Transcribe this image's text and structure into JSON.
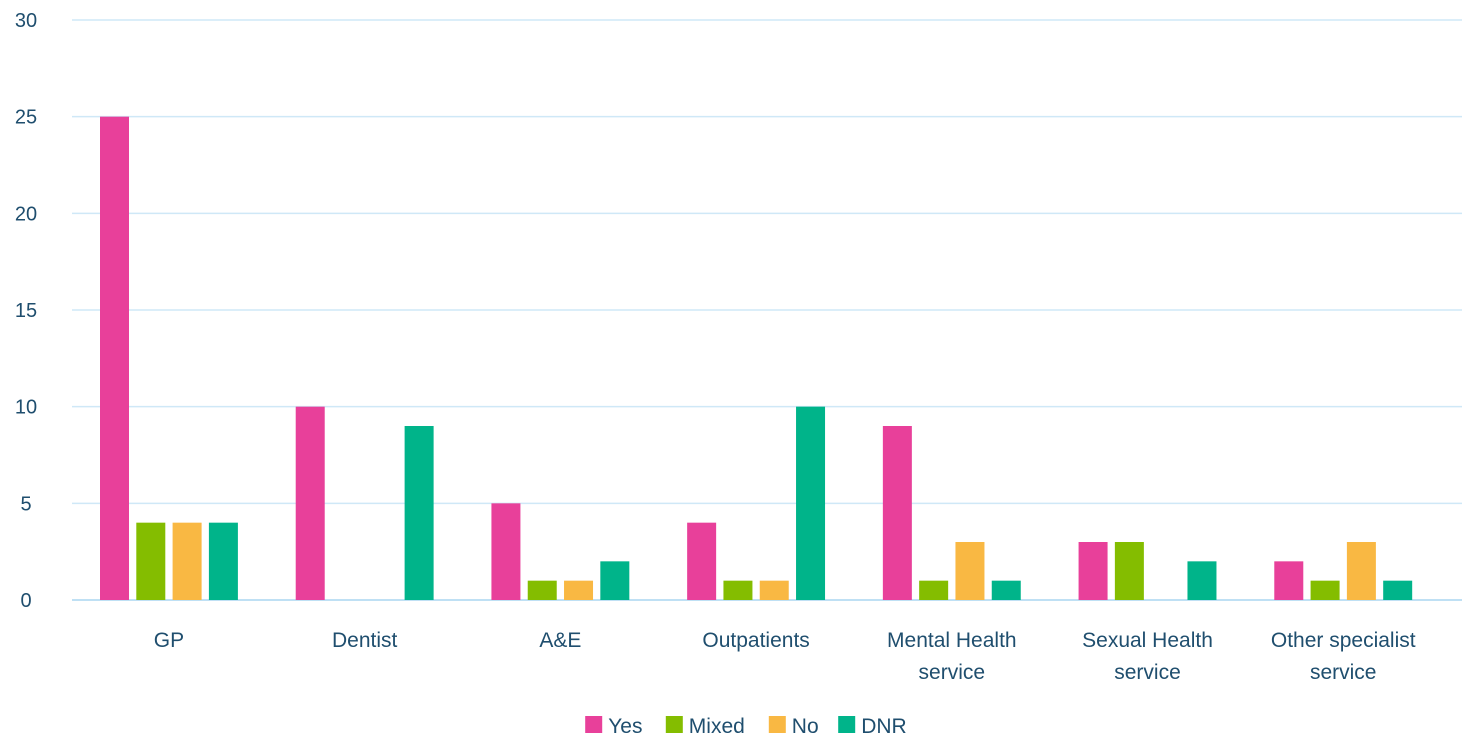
{
  "colors": {
    "text": "#1f4e6e",
    "grid": "#cfe8f7",
    "axis": "#bfe0f4"
  },
  "chart_data": {
    "type": "bar",
    "categories": [
      [
        "GP"
      ],
      [
        "Dentist"
      ],
      [
        "A&E"
      ],
      [
        "Outpatients"
      ],
      [
        "Mental Health",
        "service"
      ],
      [
        "Sexual Health",
        "service"
      ],
      [
        "Other specialist",
        "service"
      ]
    ],
    "series": [
      {
        "name": "Yes",
        "color": "#e8409a",
        "values": [
          25,
          10,
          5,
          4,
          9,
          3,
          2
        ]
      },
      {
        "name": "Mixed",
        "color": "#84bd00",
        "values": [
          4,
          0,
          1,
          1,
          1,
          3,
          1
        ]
      },
      {
        "name": "No",
        "color": "#f9b843",
        "values": [
          4,
          0,
          1,
          1,
          3,
          0,
          3
        ]
      },
      {
        "name": "DNR",
        "color": "#00b48a",
        "values": [
          4,
          9,
          2,
          10,
          1,
          2,
          1
        ]
      }
    ],
    "ylim": [
      0,
      30
    ],
    "yticks": [
      0,
      5,
      10,
      15,
      20,
      25,
      30
    ],
    "grid": true,
    "legend_position": "bottom-center"
  }
}
